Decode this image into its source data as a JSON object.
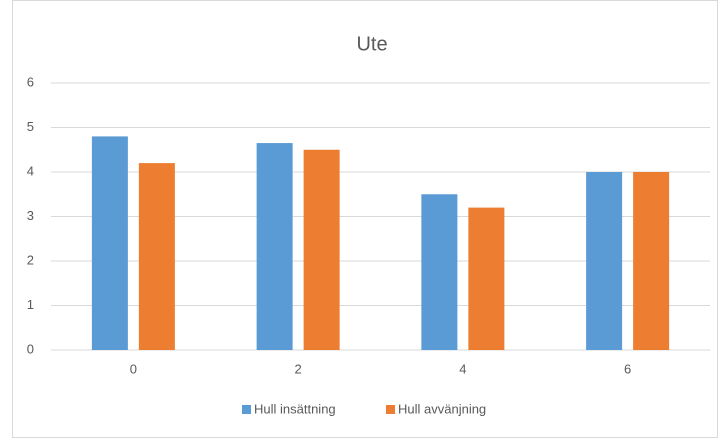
{
  "chart_data": {
    "type": "bar",
    "title": "Ute",
    "categories": [
      "0",
      "2",
      "4",
      "6"
    ],
    "series": [
      {
        "name": "Hull insättning",
        "color": "#5b9bd5",
        "values": [
          4.8,
          4.65,
          3.5,
          4.0
        ]
      },
      {
        "name": "Hull avvänjning",
        "color": "#ed7d31",
        "values": [
          4.2,
          4.5,
          3.2,
          4.0
        ]
      }
    ],
    "ylim": [
      0,
      6
    ],
    "yticks": [
      0,
      1,
      2,
      3,
      4,
      5,
      6
    ],
    "grid": true,
    "legend": "bottom"
  }
}
